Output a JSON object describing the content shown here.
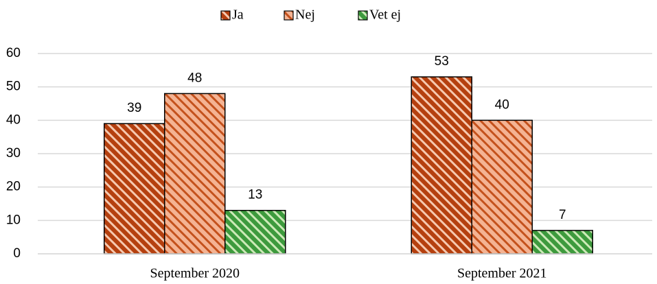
{
  "chart_data": {
    "type": "bar",
    "categories": [
      "September 2020",
      "September 2021"
    ],
    "series": [
      {
        "name": "Ja",
        "color": "#b5400f",
        "hatch_color": "#f6c9b0",
        "values": [
          39,
          53
        ]
      },
      {
        "name": "Nej",
        "color": "#f4b393",
        "hatch_color": "#c4511c",
        "values": [
          48,
          40
        ]
      },
      {
        "name": "Vet ej",
        "color": "#3d9a3d",
        "hatch_color": "#cdeab8",
        "values": [
          13,
          7
        ]
      }
    ],
    "ylim": [
      0,
      60
    ],
    "yticks": [
      0,
      10,
      20,
      30,
      40,
      50,
      60
    ],
    "grid": true,
    "legend": "top"
  }
}
